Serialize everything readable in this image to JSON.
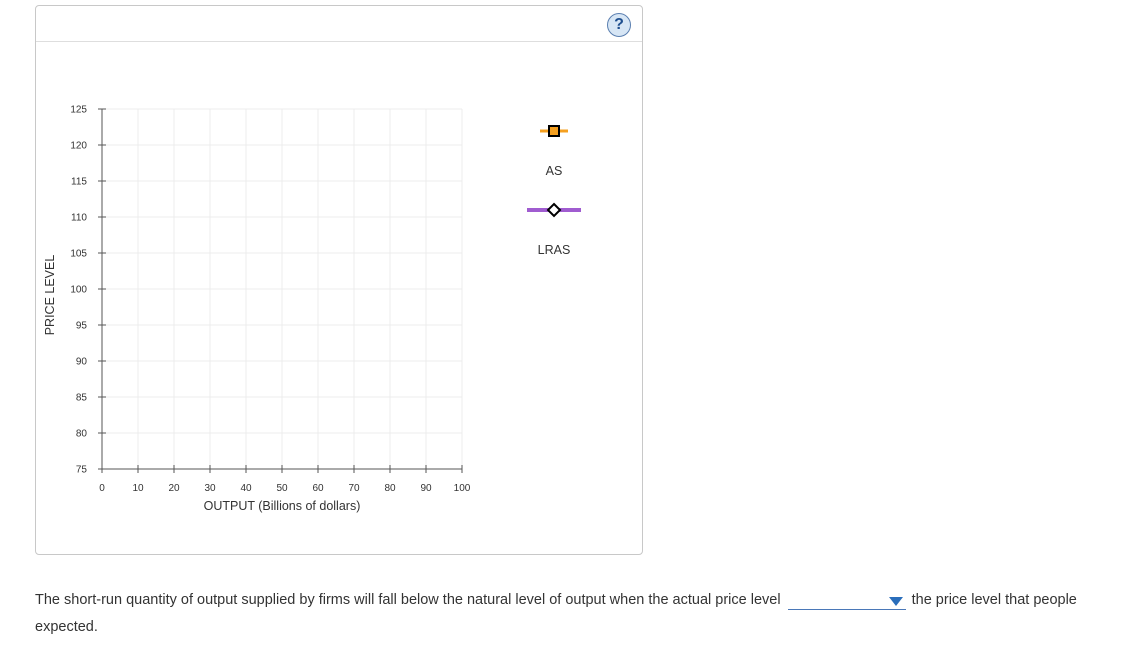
{
  "help": {
    "label": "?"
  },
  "chart_data": {
    "type": "line",
    "title": "",
    "xlabel": "OUTPUT (Billions of dollars)",
    "ylabel": "PRICE LEVEL",
    "xlim": [
      0,
      100
    ],
    "ylim": [
      75,
      125
    ],
    "x_ticks": [
      0,
      10,
      20,
      30,
      40,
      50,
      60,
      70,
      80,
      90,
      100
    ],
    "y_ticks": [
      75,
      80,
      85,
      90,
      95,
      100,
      105,
      110,
      115,
      120,
      125
    ],
    "grid": true,
    "series": [],
    "legend_position": "right",
    "legend": [
      {
        "name": "AS",
        "color": "#f5a020",
        "marker": "square",
        "marker_color": "#000000",
        "marker_fill": "#f5a020"
      },
      {
        "name": "LRAS",
        "color": "#a05cd0",
        "marker": "diamond",
        "marker_color": "#000000",
        "marker_fill": "#ffffff"
      }
    ]
  },
  "question": {
    "text_before": "The short-run quantity of output supplied by firms will fall below the natural level of output when the actual price level",
    "dropdown_value": "",
    "text_after": "the price level that people expected."
  }
}
